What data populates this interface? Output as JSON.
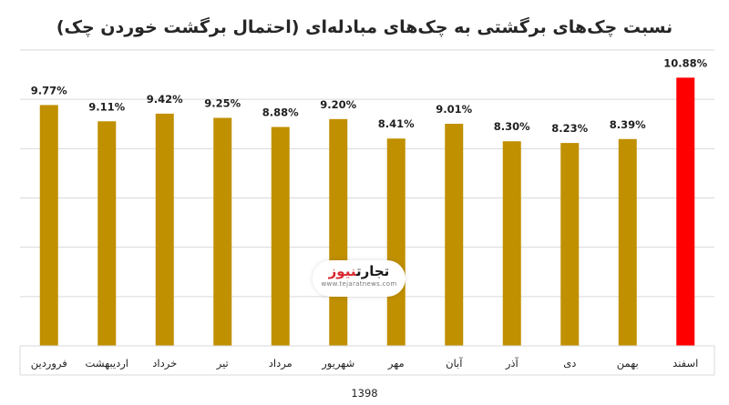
{
  "chart_data": {
    "type": "bar",
    "title": "نسبت چک‌های برگشتی به چک‌های مبادله‌ای (احتمال برگشت خوردن چک)",
    "categories": [
      "فروردین",
      "اردیبهشت",
      "خرداد",
      "تیر",
      "مرداد",
      "شهریور",
      "مهر",
      "آبان",
      "آذر",
      "دی",
      "بهمن",
      "اسفند"
    ],
    "values": [
      9.77,
      9.11,
      9.42,
      9.25,
      8.88,
      9.2,
      8.41,
      9.01,
      8.3,
      8.23,
      8.39,
      10.88
    ],
    "value_labels": [
      "9.77%",
      "9.11%",
      "9.42%",
      "9.25%",
      "8.88%",
      "9.20%",
      "8.41%",
      "9.01%",
      "8.30%",
      "8.23%",
      "8.39%",
      "10.88%"
    ],
    "group_label": "1398",
    "ylim": [
      0,
      12
    ],
    "grid": true,
    "colors": {
      "bar": "#C09000",
      "highlight_bar": "#FF0000",
      "grid": "#D9D9D9"
    },
    "highlight_index": 11
  },
  "watermark": {
    "name_part1": "تجارت",
    "name_part2": "نیوز",
    "domain": "www.tejaratnews.com"
  }
}
